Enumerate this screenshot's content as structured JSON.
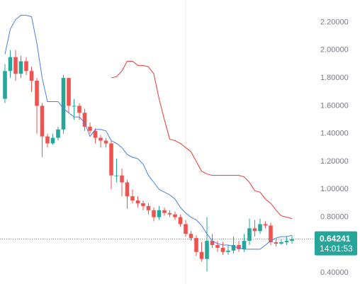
{
  "chart_data": {
    "type": "candlestick",
    "up_color": "#26a69a",
    "down_color": "#ef5350",
    "open": [
      1.65,
      1.85,
      1.95,
      1.83,
      1.92,
      1.85,
      1.78,
      1.6,
      1.38,
      1.33,
      1.37,
      1.43,
      1.8,
      1.6,
      1.6,
      1.55,
      1.45,
      1.42,
      1.37,
      1.35,
      1.33,
      1.1,
      1.1,
      1.05,
      0.95,
      0.92,
      0.9,
      0.88,
      0.85,
      0.8,
      0.85,
      0.83,
      0.82,
      0.8,
      0.75,
      0.68,
      0.65,
      0.55,
      0.5,
      0.63,
      0.6,
      0.58,
      0.55,
      0.56,
      0.6,
      0.57,
      0.63,
      0.72,
      0.7,
      0.75,
      0.74,
      0.62,
      0.61,
      0.62,
      0.63
    ],
    "high": [
      1.9,
      2.0,
      2.0,
      1.96,
      1.95,
      1.88,
      1.8,
      1.62,
      1.4,
      1.4,
      1.45,
      1.82,
      1.8,
      1.65,
      1.62,
      1.58,
      1.48,
      1.44,
      1.39,
      1.37,
      1.35,
      1.22,
      1.15,
      1.07,
      1.0,
      0.95,
      0.92,
      0.9,
      0.87,
      0.88,
      0.87,
      0.85,
      0.84,
      0.82,
      0.78,
      0.7,
      0.67,
      0.62,
      0.8,
      0.68,
      0.63,
      0.62,
      0.6,
      0.66,
      0.63,
      0.68,
      0.79,
      0.78,
      0.79,
      0.77,
      0.76,
      0.64,
      0.64,
      0.66,
      0.67
    ],
    "low": [
      1.62,
      1.8,
      1.78,
      1.8,
      1.82,
      1.7,
      1.4,
      1.23,
      1.3,
      1.32,
      1.35,
      1.4,
      1.55,
      1.5,
      1.5,
      1.42,
      1.4,
      1.33,
      1.3,
      1.3,
      1.0,
      1.05,
      0.95,
      0.86,
      0.9,
      0.87,
      0.85,
      0.82,
      0.77,
      0.78,
      0.81,
      0.8,
      0.78,
      0.73,
      0.66,
      0.63,
      0.52,
      0.48,
      0.41,
      0.58,
      0.55,
      0.53,
      0.53,
      0.54,
      0.55,
      0.55,
      0.6,
      0.66,
      0.68,
      0.72,
      0.6,
      0.59,
      0.6,
      0.6,
      0.61
    ],
    "close": [
      1.85,
      1.95,
      1.83,
      1.92,
      1.85,
      1.78,
      1.6,
      1.38,
      1.33,
      1.37,
      1.43,
      1.8,
      1.6,
      1.6,
      1.55,
      1.45,
      1.42,
      1.37,
      1.35,
      1.33,
      1.1,
      1.1,
      1.05,
      0.95,
      0.92,
      0.9,
      0.88,
      0.85,
      0.8,
      0.85,
      0.83,
      0.82,
      0.8,
      0.75,
      0.68,
      0.65,
      0.55,
      0.5,
      0.63,
      0.6,
      0.58,
      0.55,
      0.56,
      0.6,
      0.57,
      0.63,
      0.72,
      0.7,
      0.75,
      0.74,
      0.62,
      0.61,
      0.62,
      0.63,
      0.64241
    ],
    "lines": [
      {
        "color": "#4a7fe0",
        "values": [
          1.97,
          2.15,
          2.22,
          2.25,
          2.25,
          2.24,
          2.05,
          1.8,
          1.63,
          1.63,
          1.63,
          1.58,
          1.55,
          1.52,
          1.52,
          1.48,
          1.38,
          1.43,
          1.43,
          1.42,
          1.35,
          1.33,
          1.3,
          1.25,
          1.23,
          1.22,
          1.18,
          1.1,
          1.05,
          1.0,
          0.98,
          0.96,
          0.93,
          0.87,
          0.83,
          0.8,
          0.78,
          0.74,
          0.68,
          0.63,
          0.61,
          0.6,
          0.6,
          0.59,
          0.58,
          0.57,
          0.57,
          0.57,
          0.57,
          0.6,
          0.63,
          0.65,
          0.66,
          0.66,
          0.67
        ]
      },
      {
        "color": "#e53935",
        "values": [
          null,
          null,
          null,
          null,
          null,
          null,
          null,
          null,
          null,
          null,
          null,
          null,
          null,
          null,
          null,
          null,
          null,
          null,
          null,
          null,
          1.8,
          1.81,
          1.85,
          1.92,
          1.92,
          1.89,
          1.89,
          1.88,
          1.83,
          1.65,
          1.5,
          1.36,
          1.35,
          1.33,
          1.3,
          1.27,
          1.2,
          1.13,
          1.11,
          1.1,
          1.1,
          1.1,
          1.1,
          1.1,
          1.1,
          1.09,
          1.05,
          0.99,
          0.98,
          0.93,
          0.9,
          0.85,
          0.81,
          0.8,
          0.79
        ]
      }
    ],
    "ylim": [
      0.32,
      2.36
    ],
    "yticks": [
      {
        "value": 0.4,
        "label": "0.40000"
      },
      {
        "value": 0.6,
        "label": "0.60000"
      },
      {
        "value": 0.8,
        "label": "0.80000"
      },
      {
        "value": 1.0,
        "label": "1.00000"
      },
      {
        "value": 1.2,
        "label": "1.20000"
      },
      {
        "value": 1.4,
        "label": "1.40000"
      },
      {
        "value": 1.6,
        "label": "1.60000"
      },
      {
        "value": 1.8,
        "label": "1.80000"
      },
      {
        "value": 2.0,
        "label": "2.00000"
      },
      {
        "value": 2.2,
        "label": "2.20000"
      }
    ],
    "last_price": 0.64241,
    "countdown": "14:01:53"
  }
}
